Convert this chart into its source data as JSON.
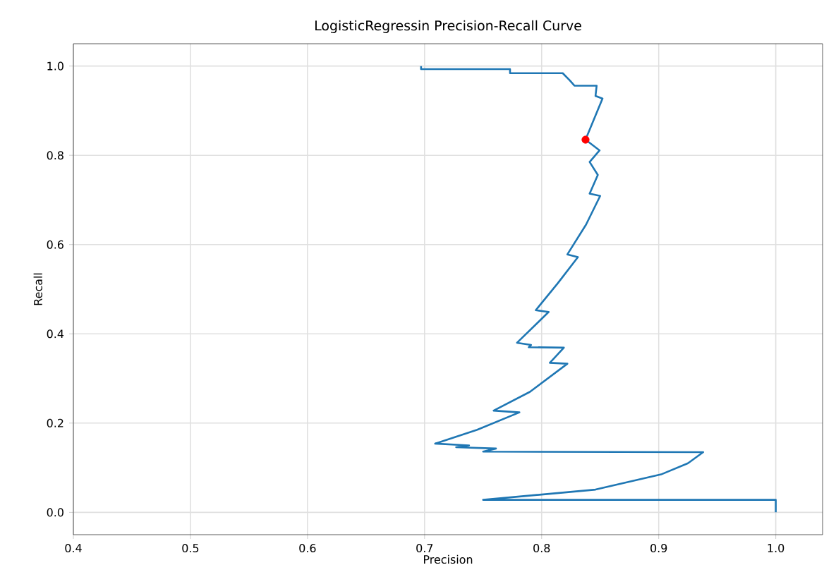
{
  "chart_data": {
    "type": "line",
    "title": "LogisticRegressin Precision-Recall Curve",
    "xlabel": "Precision",
    "ylabel": "Recall",
    "xlim": [
      0.4,
      1.04
    ],
    "ylim": [
      -0.05,
      1.05
    ],
    "xticks": [
      {
        "value": 0.4,
        "label": "0.4"
      },
      {
        "value": 0.5,
        "label": "0.5"
      },
      {
        "value": 0.6,
        "label": "0.6"
      },
      {
        "value": 0.7,
        "label": "0.7"
      },
      {
        "value": 0.8,
        "label": "0.8"
      },
      {
        "value": 0.9,
        "label": "0.9"
      },
      {
        "value": 1.0,
        "label": "1.0"
      }
    ],
    "yticks": [
      {
        "value": 0.0,
        "label": "0.0"
      },
      {
        "value": 0.2,
        "label": "0.2"
      },
      {
        "value": 0.4,
        "label": "0.4"
      },
      {
        "value": 0.6,
        "label": "0.6"
      },
      {
        "value": 0.8,
        "label": "0.8"
      },
      {
        "value": 1.0,
        "label": "1.0"
      }
    ],
    "grid": true,
    "series": [
      {
        "color": "#1f77b4",
        "marker": "none",
        "x": [
          0.697,
          0.697,
          0.773,
          0.773,
          0.818,
          0.821,
          0.824,
          0.828,
          0.847,
          0.846,
          0.852,
          0.8375,
          0.8495,
          0.841,
          0.848,
          0.841,
          0.85,
          0.838,
          0.822,
          0.831,
          0.814,
          0.795,
          0.806,
          0.779,
          0.791,
          0.789,
          0.819,
          0.807,
          0.822,
          0.79,
          0.759,
          0.781,
          0.745,
          0.709,
          0.738,
          0.727,
          0.761,
          0.75,
          0.938,
          0.925,
          0.902,
          0.846,
          0.75,
          1.0,
          1.0
        ],
        "values": [
          1.0,
          0.993,
          0.993,
          0.984,
          0.984,
          0.976,
          0.968,
          0.956,
          0.956,
          0.933,
          0.927,
          0.835,
          0.811,
          0.785,
          0.756,
          0.714,
          0.709,
          0.645,
          0.578,
          0.572,
          0.514,
          0.453,
          0.449,
          0.38,
          0.375,
          0.37,
          0.369,
          0.335,
          0.333,
          0.27,
          0.228,
          0.224,
          0.185,
          0.154,
          0.15,
          0.146,
          0.143,
          0.136,
          0.135,
          0.11,
          0.085,
          0.051,
          0.028,
          0.028,
          0.0
        ]
      },
      {
        "type": "scatter",
        "color": "#ff0000",
        "marker": "circle",
        "x": [
          0.8375
        ],
        "values": [
          0.835
        ]
      }
    ]
  }
}
